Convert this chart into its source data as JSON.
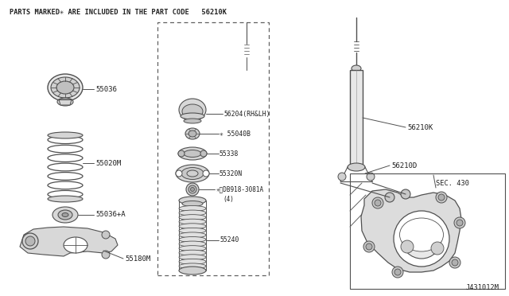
{
  "bg_color": "#ffffff",
  "line_color": "#505050",
  "text_color": "#202020",
  "header_text": "PARTS MARKED✳ ARE INCLUDED IN THE PART CODE   56210K",
  "footer_text": "J431012M",
  "sec_text": "SEC. 430",
  "figsize": [
    6.4,
    3.72
  ],
  "dpi": 100
}
